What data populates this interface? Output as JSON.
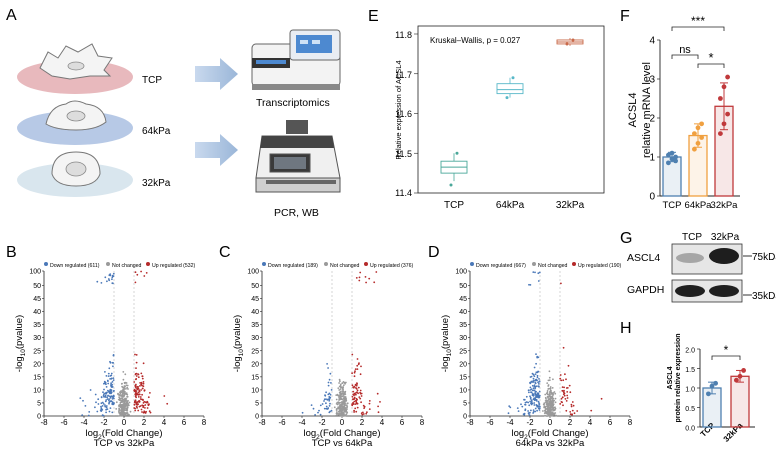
{
  "panel_labels": {
    "a": "A",
    "b": "B",
    "c": "C",
    "d": "D",
    "e": "E",
    "f": "F",
    "g": "G",
    "h": "H"
  },
  "panel_a": {
    "substrates": [
      "TCP",
      "64kPa",
      "32kPa"
    ],
    "outputs": [
      "Transcriptomics",
      "PCR, WB"
    ]
  },
  "colors": {
    "down": "#4a78b8",
    "notchanged": "#9a9a9a",
    "up": "#b52a2a",
    "tcp": "#4f80b0",
    "kpa64": "#f0a040",
    "kpa32": "#c0393b"
  },
  "chart_data": [
    {
      "type": "scatter",
      "panel": "B",
      "legend": [
        "Down regulated (611)",
        "Not changed",
        "Up regulated (532)"
      ],
      "xlabel_main": "log",
      "xlabel_sub": "2",
      "xlabel_rest": "(Fold Change)",
      "title": "TCP vs 32kPa",
      "ylabel_pre": "-log",
      "ylabel_sub": "10",
      "ylabel_post": "(pvalue)",
      "xticks": [
        "-8",
        "-6",
        "-4",
        "-2",
        "0",
        "2",
        "4",
        "6",
        "8"
      ],
      "yticks": [
        "0",
        "5",
        "10",
        "15",
        "20",
        "25",
        "30",
        "35",
        "40",
        "45",
        "50",
        "100"
      ],
      "xlim": [
        -8,
        8
      ],
      "ylim": [
        0,
        100
      ],
      "down": 611,
      "up": 532
    },
    {
      "type": "scatter",
      "panel": "C",
      "legend": [
        "Down regulated (189)",
        "Not changed",
        "Up regulated (376)"
      ],
      "xlabel_main": "log",
      "xlabel_sub": "2",
      "xlabel_rest": "(Fold Change)",
      "title": "TCP vs 64kPa",
      "ylabel_pre": "-log",
      "ylabel_sub": "10",
      "ylabel_post": "(pvalue)",
      "xticks": [
        "-8",
        "-6",
        "-4",
        "-2",
        "0",
        "2",
        "4",
        "6",
        "8"
      ],
      "yticks": [
        "0",
        "5",
        "10",
        "15",
        "20",
        "25",
        "30",
        "35",
        "40",
        "45",
        "50",
        "100"
      ],
      "xlim": [
        -8,
        8
      ],
      "ylim": [
        0,
        100
      ],
      "down": 189,
      "up": 376
    },
    {
      "type": "scatter",
      "panel": "D",
      "legend": [
        "Down regulated (667)",
        "Not changed",
        "Up regulated (190)"
      ],
      "xlabel_main": "log",
      "xlabel_sub": "2",
      "xlabel_rest": "(Fold Change)",
      "title": "64kPa vs 32kPa",
      "ylabel_pre": "-log",
      "ylabel_sub": "10",
      "ylabel_post": "(pvalue)",
      "xticks": [
        "-8",
        "-6",
        "-4",
        "-2",
        "0",
        "2",
        "4",
        "6",
        "8"
      ],
      "yticks": [
        "0",
        "5",
        "10",
        "15",
        "20",
        "25",
        "30",
        "35",
        "40",
        "45",
        "50",
        "100"
      ],
      "xlim": [
        -8,
        8
      ],
      "ylim": [
        0,
        100
      ],
      "down": 667,
      "up": 190
    },
    {
      "type": "box",
      "panel": "E",
      "annotation": "Kruskal–Wallis, p = 0.027",
      "ylabel": "Relative expression of ACSL4",
      "categories": [
        "TCP",
        "64kPa",
        "32kPa"
      ],
      "yticks": [
        "11.4",
        "11.5",
        "11.6",
        "11.7",
        "11.8"
      ],
      "ylim": [
        11.4,
        11.8
      ],
      "boxes": [
        {
          "min": 11.43,
          "q1": 11.45,
          "median": 11.465,
          "q3": 11.48,
          "max": 11.5,
          "points": [
            11.42,
            11.5
          ]
        },
        {
          "min": 11.64,
          "q1": 11.65,
          "median": 11.66,
          "q3": 11.675,
          "max": 11.69,
          "points": [
            11.64,
            11.69
          ]
        },
        {
          "min": 11.77,
          "q1": 11.775,
          "median": 11.78,
          "q3": 11.785,
          "max": 11.79,
          "points": [
            11.775,
            11.785
          ]
        }
      ]
    },
    {
      "type": "bar",
      "panel": "F",
      "ylabel_1": "ACSL4",
      "ylabel_2": "relative mRNA level",
      "categories": [
        "TCP",
        "64kPa",
        "32kPa"
      ],
      "values": [
        1.0,
        1.55,
        2.3
      ],
      "errors": [
        0.12,
        0.3,
        0.6
      ],
      "points": [
        [
          0.85,
          0.95,
          1.0,
          1.05,
          1.1,
          0.9
        ],
        [
          1.2,
          1.35,
          1.5,
          1.6,
          1.75,
          1.85
        ],
        [
          1.6,
          1.85,
          2.1,
          2.5,
          2.8,
          3.05
        ]
      ],
      "yticks": [
        "0",
        "1",
        "2",
        "3",
        "4"
      ],
      "ylim": [
        0,
        4
      ],
      "significance": [
        {
          "label": "***"
        },
        {
          "label": "ns"
        },
        {
          "label": "*"
        }
      ]
    },
    {
      "type": "bar",
      "panel": "H",
      "ylabel_1": "ASCL4",
      "ylabel_2": "protein relative expression",
      "categories": [
        "TCP",
        "32kPa"
      ],
      "values": [
        1.0,
        1.3
      ],
      "errors": [
        0.15,
        0.15
      ],
      "points": [
        [
          0.85,
          1.05,
          1.12
        ],
        [
          1.2,
          1.3,
          1.45
        ]
      ],
      "yticks": [
        "0.0",
        "0.5",
        "1.0",
        "1.5",
        "2.0"
      ],
      "ylim": [
        0,
        2
      ],
      "significance": [
        {
          "label": "*"
        }
      ]
    }
  ],
  "panel_g": {
    "lanes": [
      "TCP",
      "32kPa"
    ],
    "rows": [
      "ASCL4",
      "GAPDH"
    ],
    "markers": [
      "75kDa",
      "35kDa"
    ]
  }
}
